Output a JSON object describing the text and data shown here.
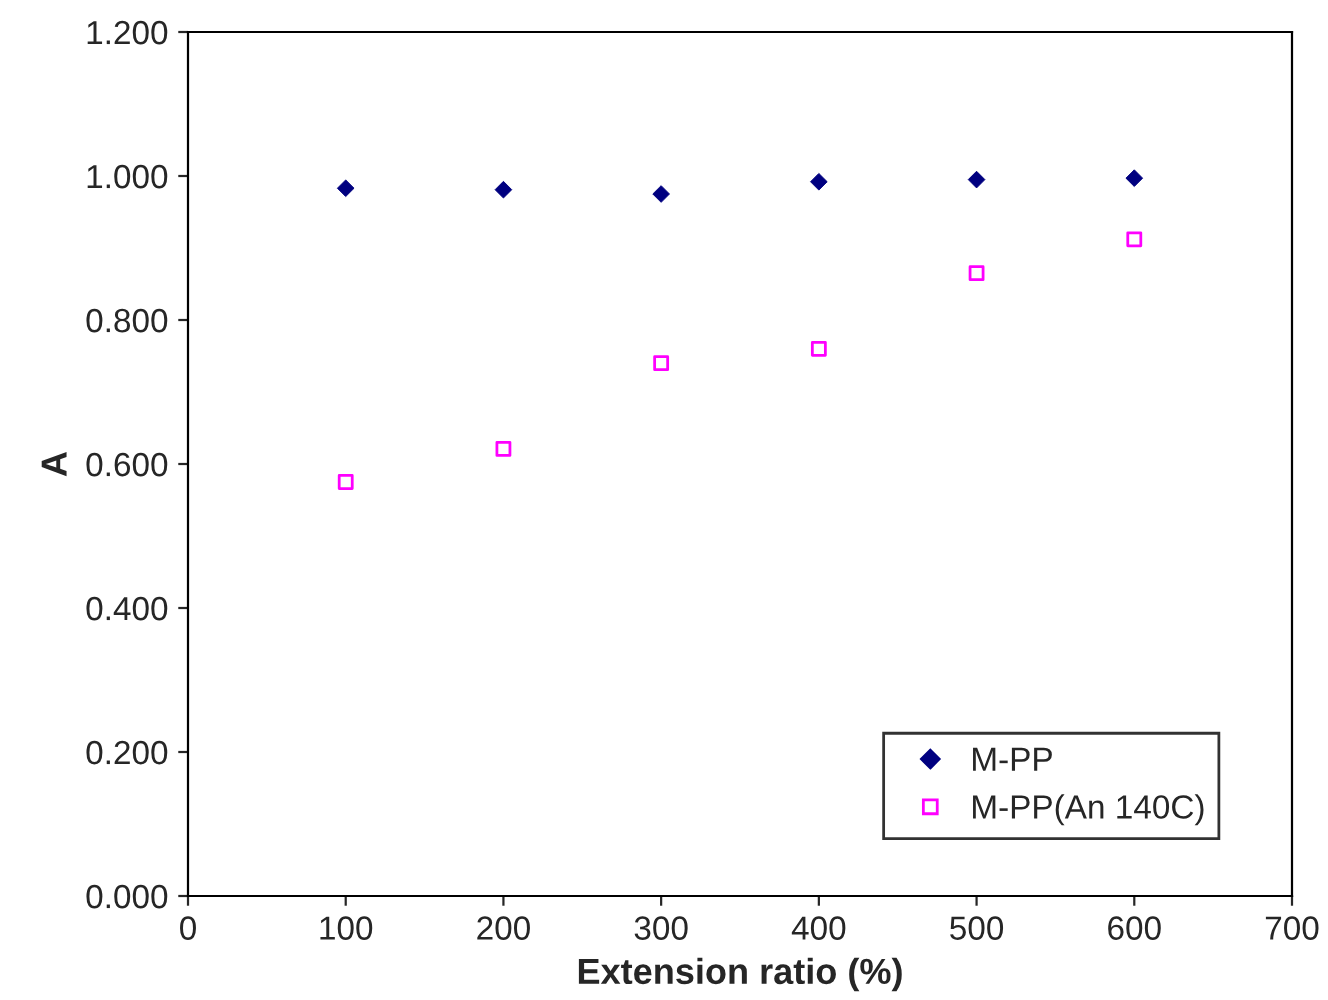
{
  "chart_data": {
    "type": "scatter",
    "xlabel": "Extension ratio (%)",
    "ylabel": "A",
    "x": [
      100,
      200,
      300,
      400,
      500,
      600
    ],
    "series": [
      {
        "name": "M-PP",
        "color": "#000080",
        "marker": "diamond",
        "values": [
          0.983,
          0.981,
          0.975,
          0.992,
          0.995,
          0.997
        ]
      },
      {
        "name": "M-PP(An 140C)",
        "color": "#ff00ff",
        "marker": "square",
        "values": [
          0.575,
          0.621,
          0.74,
          0.76,
          0.865,
          0.912
        ]
      }
    ],
    "xlim": [
      0,
      700
    ],
    "xticks": [
      0,
      100,
      200,
      300,
      400,
      500,
      600,
      700
    ],
    "ylim": [
      0,
      1.2
    ],
    "yticks": [
      {
        "value": 0,
        "label": "0.000"
      },
      {
        "value": 0.2,
        "label": "0.200"
      },
      {
        "value": 0.4,
        "label": "0.400"
      },
      {
        "value": 0.6,
        "label": "0.600"
      },
      {
        "value": 0.8,
        "label": "0.800"
      },
      {
        "value": 1.0,
        "label": "1.000"
      },
      {
        "value": 1.2,
        "label": "1.200"
      }
    ],
    "grid": false,
    "legend": "bottom right"
  }
}
